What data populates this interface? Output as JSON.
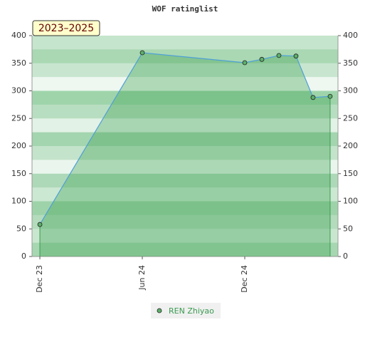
{
  "chart_data": {
    "type": "area",
    "title": "WOF ratinglist",
    "period_label": "2023–2025",
    "x": [
      0,
      6,
      12,
      13,
      14,
      15,
      16,
      17
    ],
    "xlim": [
      -0.46,
      17.46
    ],
    "xticks": [
      {
        "value": 0,
        "label": "Dec 23"
      },
      {
        "value": 6,
        "label": "Jun 24"
      },
      {
        "value": 12,
        "label": "Dec 24"
      }
    ],
    "series": [
      {
        "name": "REN Zhiyao",
        "color": "#4f9fd8",
        "values": [
          58,
          369,
          351,
          357,
          364,
          363,
          288,
          290
        ]
      }
    ],
    "ylim": [
      0,
      400
    ],
    "yticks": [
      0,
      50,
      100,
      150,
      200,
      250,
      300,
      350,
      400
    ],
    "y2lim": [
      0,
      400
    ],
    "y2ticks": [
      0,
      50,
      100,
      150,
      200,
      250,
      300,
      350,
      400
    ]
  }
}
